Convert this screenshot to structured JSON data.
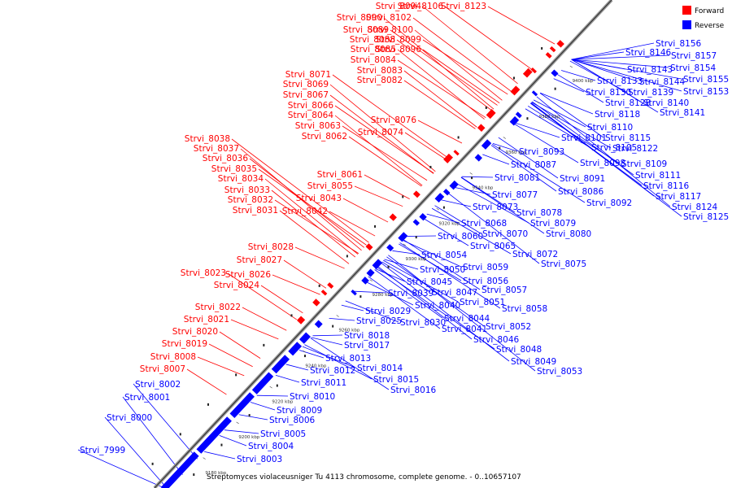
{
  "caption": "Streptomyces violaceusniger Tu 4113 chromosome, complete genome. - 0..10657107",
  "legend": [
    {
      "label": "Forward",
      "color": "#ff0000"
    },
    {
      "label": "Reverse",
      "color": "#0000ff"
    }
  ],
  "colors": {
    "forward": "#ff0000",
    "reverse": "#0000ff",
    "backbone": "#888888"
  },
  "ticks": [
    "9180 kbp",
    "9200 kbp",
    "9220 kbp",
    "9240 kbp",
    "9260 kbp",
    "9280 kbp",
    "9300 kbp",
    "9320 kbp",
    "9340 kbp",
    "9360 kbp",
    "9380 kbp",
    "9400 kbp"
  ],
  "forward_labels": [
    "Strvi_8094",
    "Strvi_8106",
    "Strvi_8123",
    "Strvi_8090",
    "Strvi_8102",
    "Strvi_8089",
    "Strvi_8100",
    "Strvi_8088",
    "Strvi_8099",
    "Strvi_8085",
    "Strvi_8096",
    "Strvi_8084",
    "Strvi_8083",
    "Strvi_8082",
    "Strvi_8071",
    "Strvi_8069",
    "Strvi_8067",
    "Strvi_8066",
    "Strvi_8064",
    "Strvi_8076",
    "Strvi_8063",
    "Strvi_8074",
    "Strvi_8062",
    "Strvi_8038",
    "Strvi_8037",
    "Strvi_8036",
    "Strvi_8035",
    "Strvi_8034",
    "Strvi_8061",
    "Strvi_8055",
    "Strvi_8033",
    "Strvi_8043",
    "Strvi_8032",
    "Strvi_8031",
    "Strvi_8042",
    "Strvi_8028",
    "Strvi_8027",
    "Strvi_8023",
    "Strvi_8026",
    "Strvi_8024",
    "Strvi_8022",
    "Strvi_8021",
    "Strvi_8020",
    "Strvi_8019",
    "Strvi_8008",
    "Strvi_8007"
  ],
  "reverse_labels": [
    "Strvi_8002",
    "Strvi_8001",
    "Strvi_8000",
    "Strvi_7999",
    "Strvi_8156",
    "Strvi_8146",
    "Strvi_8157",
    "Strvi_8154",
    "Strvi_8143",
    "Strvi_8155",
    "Strvi_8133",
    "Strvi_8144",
    "Strvi_8130",
    "Strvi_8139",
    "Strvi_8153",
    "Strvi_8128",
    "Strvi_8140",
    "Strvi_8118",
    "Strvi_8141",
    "Strvi_8110",
    "Strvi_8101",
    "Strvi_8115",
    "Strvi_8105",
    "Strvi_8122",
    "Strvi_8093",
    "Strvi_8098",
    "Strvi_8109",
    "Strvi_8087",
    "Strvi_8111",
    "Strvi_8081",
    "Strvi_8091",
    "Strvi_8116",
    "Strvi_8077",
    "Strvi_8086",
    "Strvi_8117",
    "Strvi_8092",
    "Strvi_8124",
    "Strvi_8073",
    "Strvi_8125",
    "Strvi_8078",
    "Strvi_8068",
    "Strvi_8079",
    "Strvi_8070",
    "Strvi_8080",
    "Strvi_8060",
    "Strvi_8065",
    "Strvi_8054",
    "Strvi_8072",
    "Strvi_8075",
    "Strvi_8050",
    "Strvi_8059",
    "Strvi_8045",
    "Strvi_8056",
    "Strvi_8039",
    "Strvi_8047",
    "Strvi_8057",
    "Strvi_8051",
    "Strvi_8029",
    "Strvi_8040",
    "Strvi_8058",
    "Strvi_8044",
    "Strvi_8025",
    "Strvi_8030",
    "Strvi_8041",
    "Strvi_8052",
    "Strvi_8018",
    "Strvi_8046",
    "Strvi_8017",
    "Strvi_8048",
    "Strvi_8013",
    "Strvi_8049",
    "Strvi_8014",
    "Strvi_8012",
    "Strvi_8053",
    "Strvi_8015",
    "Strvi_8011",
    "Strvi_8016",
    "Strvi_8010",
    "Strvi_8009",
    "Strvi_8006",
    "Strvi_8005",
    "Strvi_8004",
    "Strvi_8003"
  ]
}
